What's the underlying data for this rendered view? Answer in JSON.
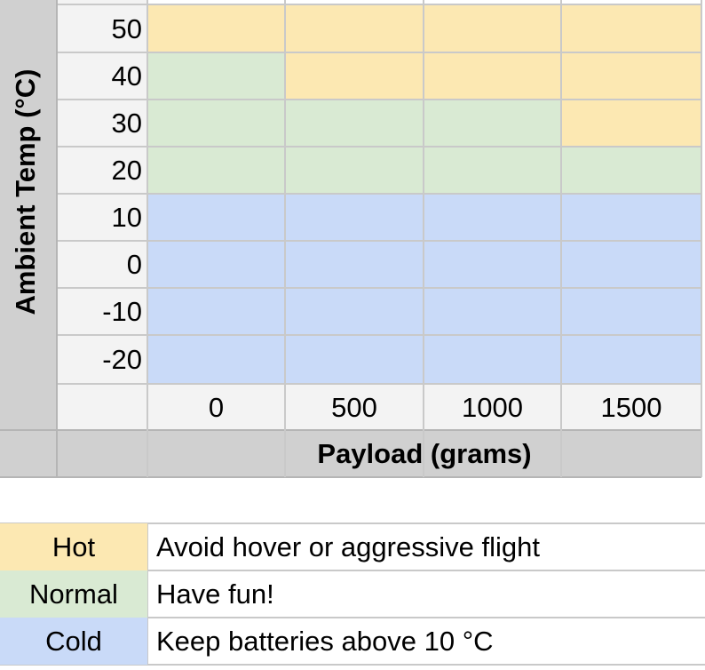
{
  "chart_data": {
    "type": "heatmap",
    "title": "",
    "xlabel": "Payload (grams)",
    "ylabel": "Ambient Temp (°C)",
    "x": [
      "0",
      "500",
      "1000",
      "1500"
    ],
    "y": [
      "50",
      "40",
      "30",
      "20",
      "10",
      "0",
      "-10",
      "-20"
    ],
    "grid": [
      [
        "Hot",
        "Hot",
        "Hot",
        "Hot"
      ],
      [
        "Normal",
        "Hot",
        "Hot",
        "Hot"
      ],
      [
        "Normal",
        "Normal",
        "Normal",
        "Hot"
      ],
      [
        "Normal",
        "Normal",
        "Normal",
        "Normal"
      ],
      [
        "Cold",
        "Cold",
        "Cold",
        "Cold"
      ],
      [
        "Cold",
        "Cold",
        "Cold",
        "Cold"
      ],
      [
        "Cold",
        "Cold",
        "Cold",
        "Cold"
      ],
      [
        "Cold",
        "Cold",
        "Cold",
        "Cold"
      ]
    ],
    "colors": {
      "Hot": "#fce8b2",
      "Normal": "#d9ead3",
      "Cold": "#c9daf8"
    }
  },
  "legend": [
    {
      "category": "Hot",
      "description": "Avoid hover or aggressive flight"
    },
    {
      "category": "Normal",
      "description": "Have fun!"
    },
    {
      "category": "Cold",
      "description": "Keep batteries above 10 °C"
    }
  ]
}
